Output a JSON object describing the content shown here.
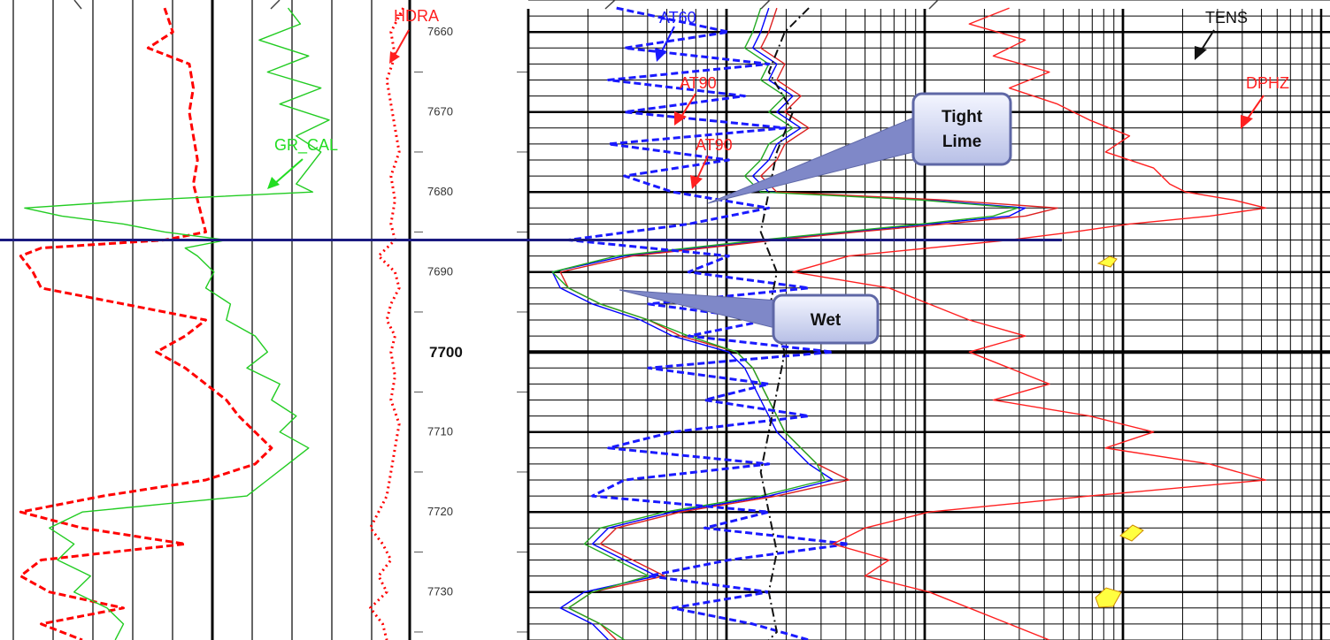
{
  "chart_data": {
    "type": "line",
    "title": "",
    "depth_axis": {
      "range": [
        7656,
        7736
      ],
      "labeled_ticks": [
        7660,
        7670,
        7680,
        7690,
        7700,
        7710,
        7720,
        7730
      ],
      "major_tick": 7700
    },
    "marker_depth": 7686,
    "curve_labels": [
      {
        "text": "HDRA",
        "color": "#ff2020"
      },
      {
        "text": "GR_CAL",
        "color": "#22dd22"
      },
      {
        "text": "AT60",
        "color": "#1a1aff"
      },
      {
        "text": "AT90",
        "color": "#ff2020"
      },
      {
        "text": "AT90",
        "color": "#ff2020"
      },
      {
        "text": "TENS",
        "color": "#111111"
      },
      {
        "text": "DPHZ",
        "color": "#ff2020"
      }
    ],
    "callouts": [
      {
        "lines": [
          "Tight",
          "Lime"
        ]
      },
      {
        "lines": [
          "Wet"
        ]
      }
    ],
    "series": [
      {
        "track": "track1",
        "color": "#ff0000",
        "style": "dashed",
        "depth": [
          7657,
          7660,
          7662,
          7664,
          7667,
          7670,
          7673,
          7676,
          7679,
          7681,
          7683,
          7685,
          7686,
          7687,
          7688,
          7690,
          7692,
          7694,
          7696,
          7698,
          7700,
          7702,
          7704,
          7706,
          7708,
          7710,
          7712,
          7714,
          7716,
          7718,
          7720,
          7722,
          7724,
          7726,
          7728,
          7730,
          7732,
          7734,
          7736
        ],
        "value": [
          0.4,
          0.42,
          0.36,
          0.46,
          0.47,
          0.46,
          0.47,
          0.48,
          0.47,
          0.48,
          0.49,
          0.5,
          0.4,
          0.1,
          0.05,
          0.08,
          0.1,
          0.3,
          0.5,
          0.45,
          0.38,
          0.45,
          0.5,
          0.55,
          0.58,
          0.62,
          0.66,
          0.62,
          0.5,
          0.25,
          0.05,
          0.2,
          0.45,
          0.1,
          0.05,
          0.12,
          0.3,
          0.1,
          0.2
        ]
      },
      {
        "track": "track1",
        "color": "#22cc22",
        "style": "solid",
        "depth": [
          7657,
          7659,
          7661,
          7663,
          7665,
          7667,
          7669,
          7671,
          7673,
          7675,
          7677,
          7679,
          7680,
          7681,
          7682,
          7683,
          7684,
          7685,
          7686,
          7687,
          7688,
          7690,
          7692,
          7694,
          7696,
          7698,
          7700,
          7702,
          7704,
          7706,
          7708,
          7710,
          7712,
          7714,
          7716,
          7718,
          7719,
          7720,
          7722,
          7724,
          7726,
          7728,
          7730,
          7732,
          7734,
          7736
        ],
        "value": [
          0.7,
          0.73,
          0.63,
          0.75,
          0.65,
          0.78,
          0.68,
          0.8,
          0.72,
          0.78,
          0.75,
          0.72,
          0.76,
          0.35,
          0.06,
          0.15,
          0.3,
          0.4,
          0.55,
          0.45,
          0.48,
          0.52,
          0.5,
          0.56,
          0.55,
          0.62,
          0.65,
          0.6,
          0.68,
          0.66,
          0.72,
          0.68,
          0.75,
          0.7,
          0.65,
          0.6,
          0.4,
          0.2,
          0.12,
          0.18,
          0.14,
          0.22,
          0.18,
          0.26,
          0.3,
          0.28
        ]
      },
      {
        "track": "track1",
        "color": "#ff0000",
        "style": "dotted",
        "depth": [
          7657,
          7660,
          7663,
          7666,
          7669,
          7672,
          7675,
          7678,
          7681,
          7684,
          7686,
          7688,
          7690,
          7692,
          7694,
          7696,
          7698,
          7700,
          7703,
          7706,
          7709,
          7712,
          7715,
          7718,
          7720,
          7722,
          7724,
          7726,
          7728,
          7730,
          7732,
          7734,
          7736
        ],
        "value": [
          0.98,
          0.95,
          0.96,
          0.94,
          0.95,
          0.96,
          0.97,
          0.95,
          0.96,
          0.95,
          0.96,
          0.92,
          0.96,
          0.97,
          0.95,
          0.94,
          0.96,
          0.95,
          0.96,
          0.95,
          0.97,
          0.96,
          0.95,
          0.94,
          0.92,
          0.9,
          0.93,
          0.95,
          0.92,
          0.94,
          0.9,
          0.93,
          0.94
        ]
      },
      {
        "track": "track2",
        "color": "#0000ff",
        "style": "solid",
        "depth": [
          7657,
          7660,
          7662,
          7664,
          7666,
          7668,
          7670,
          7672,
          7674,
          7676,
          7678,
          7680,
          7681,
          7682,
          7683,
          7684,
          7685,
          7686,
          7688,
          7690,
          7692,
          7694,
          7696,
          7698,
          7700,
          7702,
          7704,
          7706,
          7708,
          7710,
          7712,
          7714,
          7716,
          7718,
          7720,
          7722,
          7724,
          7726,
          7728,
          7730,
          7732,
          7734,
          7736
        ],
        "value": [
          0.3,
          0.29,
          0.28,
          0.31,
          0.3,
          0.33,
          0.31,
          0.34,
          0.31,
          0.3,
          0.28,
          0.3,
          0.5,
          0.62,
          0.6,
          0.5,
          0.4,
          0.3,
          0.12,
          0.03,
          0.04,
          0.08,
          0.14,
          0.18,
          0.25,
          0.27,
          0.28,
          0.29,
          0.3,
          0.31,
          0.33,
          0.35,
          0.38,
          0.3,
          0.18,
          0.1,
          0.08,
          0.12,
          0.16,
          0.07,
          0.04,
          0.08,
          0.1
        ]
      },
      {
        "track": "track2",
        "color": "#dd2020",
        "style": "solid",
        "depth": [
          7657,
          7660,
          7662,
          7664,
          7666,
          7668,
          7670,
          7672,
          7674,
          7676,
          7678,
          7680,
          7681,
          7682,
          7683,
          7684,
          7685,
          7686,
          7688,
          7690,
          7692,
          7694,
          7696,
          7698,
          7700,
          7702,
          7704,
          7706,
          7708,
          7710,
          7712,
          7714,
          7716,
          7718,
          7720,
          7722,
          7724,
          7726,
          7728,
          7730,
          7732,
          7734,
          7736
        ],
        "value": [
          0.31,
          0.3,
          0.29,
          0.32,
          0.31,
          0.34,
          0.32,
          0.35,
          0.32,
          0.31,
          0.29,
          0.31,
          0.52,
          0.66,
          0.62,
          0.52,
          0.41,
          0.31,
          0.13,
          0.04,
          0.05,
          0.09,
          0.15,
          0.19,
          0.26,
          0.28,
          0.29,
          0.3,
          0.31,
          0.32,
          0.34,
          0.36,
          0.4,
          0.31,
          0.19,
          0.11,
          0.09,
          0.13,
          0.17,
          0.08,
          0.05,
          0.09,
          0.11
        ]
      },
      {
        "track": "track2",
        "color": "#22aa22",
        "style": "solid",
        "depth": [
          7657,
          7660,
          7662,
          7664,
          7666,
          7668,
          7670,
          7672,
          7674,
          7676,
          7678,
          7680,
          7681,
          7682,
          7683,
          7684,
          7685,
          7686,
          7688,
          7690,
          7692,
          7694,
          7696,
          7698,
          7700,
          7702,
          7704,
          7706,
          7708,
          7710,
          7712,
          7714,
          7716,
          7718,
          7720,
          7722,
          7724,
          7726,
          7728,
          7730,
          7732,
          7734,
          7736
        ],
        "value": [
          0.29,
          0.28,
          0.27,
          0.3,
          0.29,
          0.32,
          0.3,
          0.33,
          0.3,
          0.29,
          0.27,
          0.29,
          0.49,
          0.61,
          0.58,
          0.49,
          0.39,
          0.29,
          0.11,
          0.03,
          0.05,
          0.09,
          0.15,
          0.2,
          0.26,
          0.28,
          0.29,
          0.3,
          0.31,
          0.32,
          0.34,
          0.36,
          0.37,
          0.29,
          0.17,
          0.09,
          0.07,
          0.11,
          0.15,
          0.08,
          0.05,
          0.09,
          0.12
        ]
      },
      {
        "track": "track2",
        "color": "#1a1aff",
        "style": "dashed",
        "depth": [
          7657,
          7660,
          7662,
          7664,
          7666,
          7668,
          7670,
          7672,
          7674,
          7676,
          7678,
          7680,
          7682,
          7684,
          7686,
          7688,
          7690,
          7692,
          7694,
          7696,
          7698,
          7700,
          7702,
          7704,
          7706,
          7708,
          7710,
          7712,
          7714,
          7716,
          7718,
          7720,
          7722,
          7724,
          7726,
          7728,
          7730,
          7732,
          7734,
          7736
        ],
        "value": [
          0.11,
          0.25,
          0.12,
          0.3,
          0.1,
          0.27,
          0.12,
          0.32,
          0.1,
          0.25,
          0.12,
          0.18,
          0.3,
          0.2,
          0.05,
          0.25,
          0.2,
          0.35,
          0.15,
          0.3,
          0.2,
          0.38,
          0.15,
          0.3,
          0.22,
          0.35,
          0.18,
          0.1,
          0.3,
          0.12,
          0.08,
          0.3,
          0.22,
          0.4,
          0.25,
          0.15,
          0.3,
          0.18,
          0.28,
          0.35
        ]
      },
      {
        "track": "track2",
        "color": "#ff2020",
        "style": "solid",
        "depth": [
          7657,
          7659,
          7661,
          7663,
          7665,
          7667,
          7669,
          7671,
          7673,
          7675,
          7677,
          7679,
          7680,
          7681,
          7682,
          7683,
          7684,
          7685,
          7686,
          7688,
          7690,
          7692,
          7694,
          7696,
          7698,
          7700,
          7702,
          7704,
          7706,
          7708,
          7710,
          7712,
          7714,
          7716,
          7718,
          7720,
          7722,
          7724,
          7726,
          7728,
          7730,
          7732,
          7734,
          7736
        ],
        "value": [
          0.6,
          0.55,
          0.62,
          0.58,
          0.65,
          0.6,
          0.66,
          0.7,
          0.75,
          0.72,
          0.78,
          0.8,
          0.82,
          0.88,
          0.92,
          0.85,
          0.75,
          0.68,
          0.6,
          0.4,
          0.33,
          0.45,
          0.5,
          0.55,
          0.62,
          0.55,
          0.6,
          0.65,
          0.58,
          0.7,
          0.78,
          0.72,
          0.85,
          0.92,
          0.7,
          0.5,
          0.42,
          0.38,
          0.45,
          0.42,
          0.5,
          0.55,
          0.6,
          0.65
        ]
      },
      {
        "track": "track2",
        "color": "#111111",
        "style": "dashdot",
        "depth": [
          7657,
          7660,
          7665,
          7670,
          7675,
          7680,
          7685,
          7690,
          7695,
          7700,
          7705,
          7710,
          7715,
          7720,
          7725,
          7730,
          7735,
          7736
        ],
        "value": [
          0.35,
          0.32,
          0.3,
          0.33,
          0.31,
          0.3,
          0.29,
          0.31,
          0.3,
          0.32,
          0.31,
          0.3,
          0.29,
          0.3,
          0.31,
          0.3,
          0.31,
          0.3
        ]
      }
    ]
  }
}
